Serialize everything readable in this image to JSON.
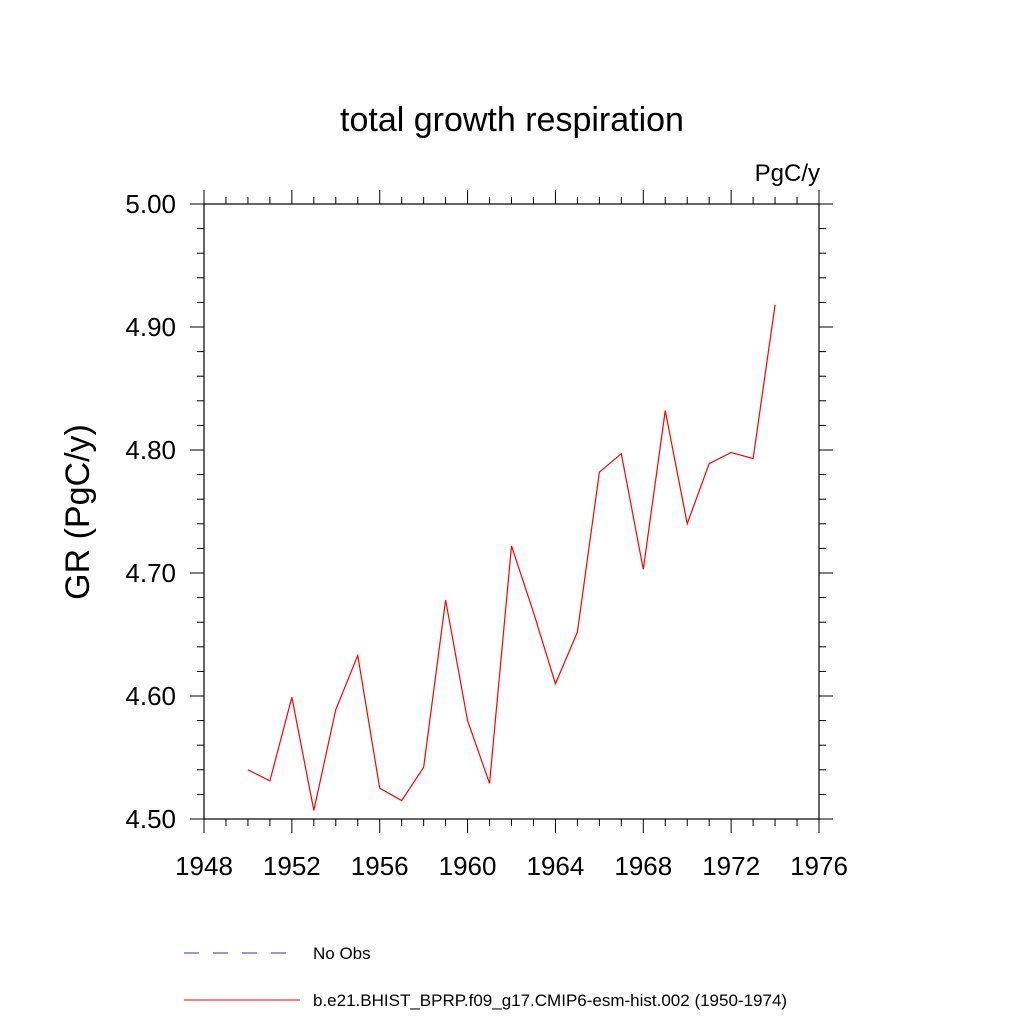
{
  "chart_data": {
    "type": "line",
    "title": "total growth respiration",
    "units": "PgC/y",
    "xlabel": "",
    "ylabel": "GR  (PgC/y)",
    "xlim": [
      1948,
      1976
    ],
    "ylim": [
      4.5,
      5.0
    ],
    "x_ticks": [
      1948,
      1952,
      1956,
      1960,
      1964,
      1968,
      1972,
      1976
    ],
    "x_tick_labels": [
      "1948",
      "1952",
      "1956",
      "1960",
      "1964",
      "1968",
      "1972",
      "1976"
    ],
    "y_ticks": [
      4.5,
      4.6,
      4.7,
      4.8,
      4.9,
      5.0
    ],
    "y_tick_labels": [
      "4.50",
      "4.60",
      "4.70",
      "4.80",
      "4.90",
      "5.00"
    ],
    "series": [
      {
        "name": "b.e21.BHIST_BPRP.f09_g17.CMIP6-esm-hist.002 (1950-1974)",
        "color": "#ff0000",
        "x": [
          1950,
          1951,
          1952,
          1953,
          1954,
          1955,
          1956,
          1957,
          1958,
          1959,
          1960,
          1961,
          1962,
          1963,
          1964,
          1965,
          1966,
          1967,
          1968,
          1969,
          1970,
          1971,
          1972,
          1973,
          1974
        ],
        "values": [
          4.54,
          4.531,
          4.599,
          4.507,
          4.589,
          4.633,
          4.525,
          4.515,
          4.542,
          4.678,
          4.58,
          4.529,
          4.722,
          4.668,
          4.61,
          4.652,
          4.782,
          4.797,
          4.703,
          4.832,
          4.74,
          4.789,
          4.798,
          4.793,
          4.918
        ]
      }
    ],
    "legend": [
      {
        "label": "No Obs",
        "color": "#3333aa",
        "style": "dashed"
      },
      {
        "label": "b.e21.BHIST_BPRP.f09_g17.CMIP6-esm-hist.002 (1950-1974)",
        "color": "#ff0000",
        "style": "solid"
      }
    ]
  }
}
